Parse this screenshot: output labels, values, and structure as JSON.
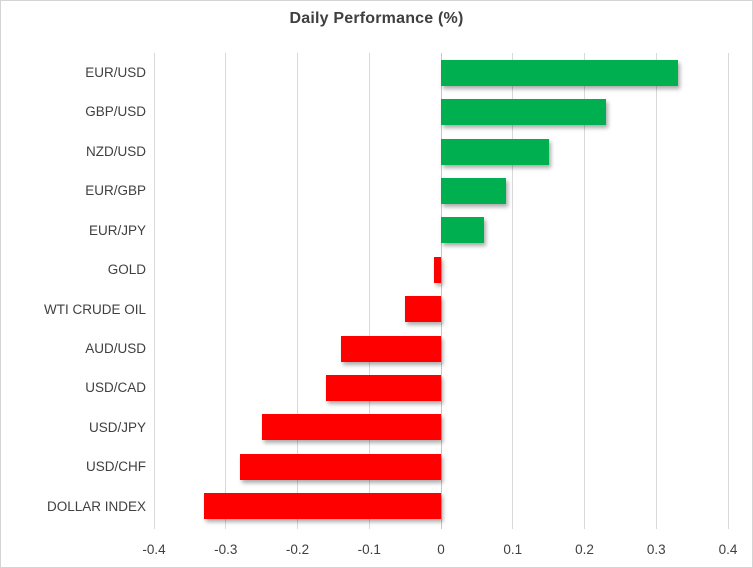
{
  "chart_data": {
    "type": "bar",
    "orientation": "horizontal",
    "title": "Daily Performance (%)",
    "categories": [
      "EUR/USD",
      "GBP/USD",
      "NZD/USD",
      "EUR/GBP",
      "EUR/JPY",
      "GOLD",
      "WTI CRUDE OIL",
      "AUD/USD",
      "USD/CAD",
      "USD/JPY",
      "USD/CHF",
      "DOLLAR INDEX"
    ],
    "values": [
      0.33,
      0.23,
      0.15,
      0.09,
      0.06,
      -0.01,
      -0.05,
      -0.14,
      -0.16,
      -0.25,
      -0.28,
      -0.33
    ],
    "xlim": [
      -0.4,
      0.4
    ],
    "xticks": [
      -0.4,
      -0.3,
      -0.2,
      -0.1,
      0,
      0.1,
      0.2,
      0.3,
      0.4
    ],
    "xtick_labels": [
      "-0.4",
      "-0.3",
      "-0.2",
      "-0.1",
      "0",
      "0.1",
      "0.2",
      "0.3",
      "0.4"
    ],
    "grid": true,
    "legend": "none",
    "xlabel": "",
    "ylabel": "",
    "colors": {
      "positive": "#00B050",
      "negative": "#FF0000",
      "gridline": "#D9D9D9",
      "zero_line": "#C6C6C6",
      "text": "#404040",
      "border": "#D4D4D4",
      "background": "#FFFFFF"
    }
  }
}
